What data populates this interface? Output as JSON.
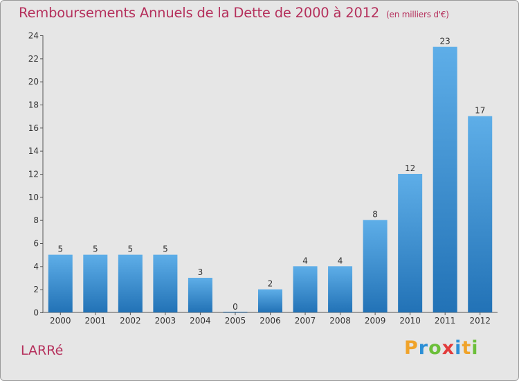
{
  "chart_data": {
    "type": "bar",
    "title": "Remboursements Annuels de la Dette de 2000 à 2012",
    "subtitle": "(en milliers d'€)",
    "categories": [
      "2000",
      "2001",
      "2002",
      "2003",
      "2004",
      "2005",
      "2006",
      "2007",
      "2008",
      "2009",
      "2010",
      "2011",
      "2012"
    ],
    "values": [
      5,
      5,
      5,
      5,
      3,
      0,
      2,
      4,
      4,
      8,
      12,
      23,
      17
    ],
    "ylim": [
      0,
      24
    ],
    "yticks": [
      0,
      2,
      4,
      6,
      8,
      10,
      12,
      14,
      16,
      18,
      20,
      22,
      24
    ],
    "grid": false,
    "xlabel": "",
    "ylabel": ""
  },
  "footer": {
    "town": "LARRé",
    "logo_letters": [
      "P",
      "r",
      "o",
      "x",
      "i",
      "t",
      "i"
    ],
    "logo_colors": [
      "#f0a32a",
      "#2b8fd6",
      "#6cbf3a",
      "#e23b3b",
      "#2b8fd6",
      "#f0a32a",
      "#6cbf3a"
    ]
  },
  "colors": {
    "title": "#b5305c",
    "bar_light": "#5eaee8",
    "bar_dark": "#2272b6"
  }
}
